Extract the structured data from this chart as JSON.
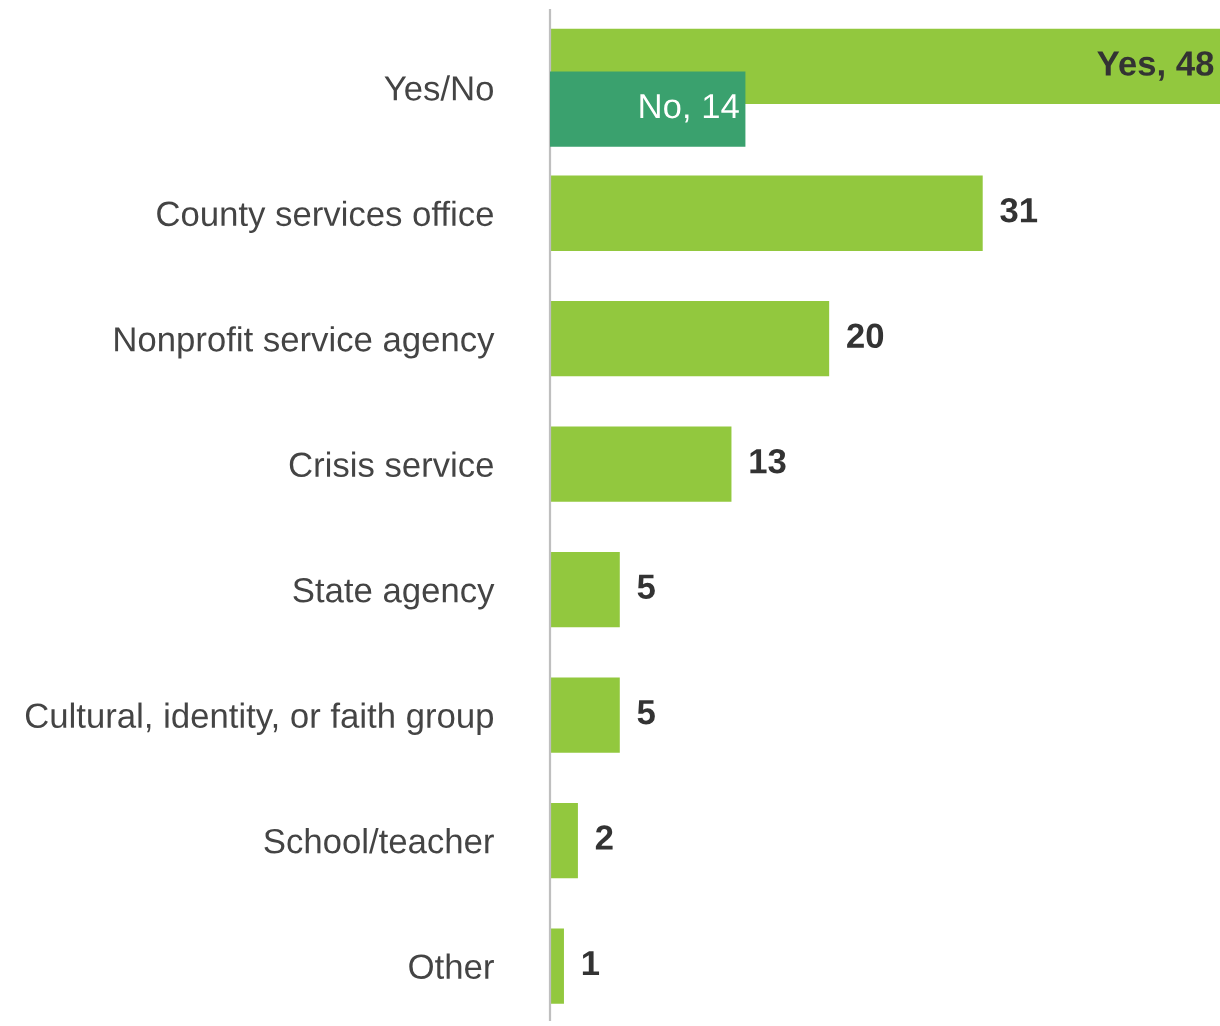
{
  "chart_data": {
    "type": "bar",
    "orientation": "horizontal",
    "categories": [
      "Yes/No",
      "County services office",
      "Nonprofit service agency",
      "Crisis service",
      "State agency",
      "Cultural, identity, or faith group",
      "School/teacher",
      "Other"
    ],
    "series": [
      {
        "color": "#92c83e",
        "values": [
          48,
          31,
          20,
          13,
          5,
          5,
          2,
          1
        ],
        "value_labels": [
          "Yes, 48",
          "31",
          "20",
          "13",
          "5",
          "5",
          "2",
          "1"
        ]
      },
      {
        "color": "#3aa16e",
        "values": [
          14,
          null,
          null,
          null,
          null,
          null,
          null,
          null
        ],
        "value_labels": [
          "No, 14",
          null,
          null,
          null,
          null,
          null,
          null,
          null
        ]
      }
    ],
    "xlim": [
      0,
      48
    ],
    "tick_labels": "y",
    "grid": false,
    "legend": false
  }
}
